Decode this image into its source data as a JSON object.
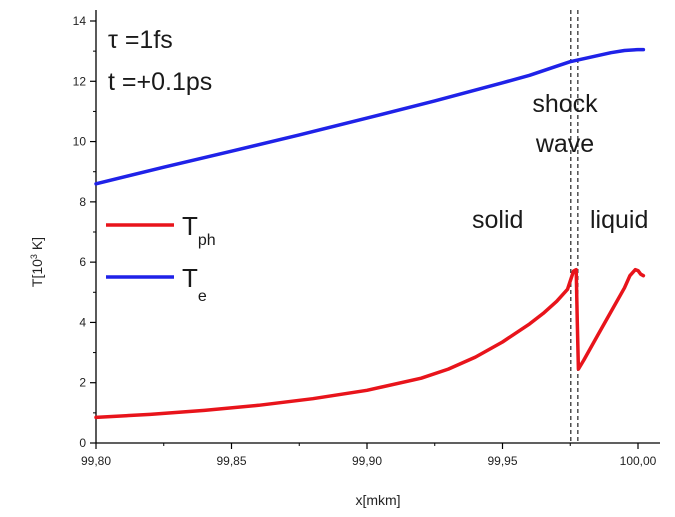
{
  "chart_data": {
    "type": "line",
    "xlabel": "x[mkm]",
    "ylabel_main": "T[10",
    "ylabel_sup": "3",
    "ylabel_tail": " K]",
    "xlim": [
      99.8,
      100.02
    ],
    "ylim": [
      0,
      14.5
    ],
    "x_ticks": [
      99.8,
      99.85,
      99.9,
      99.95,
      100.0
    ],
    "x_tick_labels": [
      "99,80",
      "99,85",
      "99,90",
      "99,95",
      "100,00"
    ],
    "y_ticks": [
      0,
      2,
      4,
      6,
      8,
      10,
      12,
      14
    ],
    "y_tick_labels": [
      "0",
      "2",
      "4",
      "6",
      "8",
      "10",
      "12",
      "14"
    ],
    "grid": false,
    "legend_placement": "middle-left",
    "series": [
      {
        "key": "Tph",
        "legend_main": "T",
        "legend_sub": "ph",
        "color": "#e8141b",
        "x": [
          99.8,
          99.82,
          99.84,
          99.86,
          99.88,
          99.9,
          99.92,
          99.93,
          99.94,
          99.95,
          99.96,
          99.965,
          99.97,
          99.974,
          99.9762,
          99.9772,
          99.9776,
          99.978,
          99.98,
          99.985,
          99.99,
          99.995,
          99.997,
          99.999,
          100.0,
          100.001,
          100.002
        ],
        "y": [
          0.85,
          0.95,
          1.08,
          1.25,
          1.47,
          1.75,
          2.15,
          2.45,
          2.85,
          3.35,
          3.95,
          4.3,
          4.7,
          5.1,
          5.7,
          5.75,
          4.0,
          2.45,
          2.75,
          3.55,
          4.35,
          5.15,
          5.55,
          5.75,
          5.72,
          5.6,
          5.55
        ]
      },
      {
        "key": "Te",
        "legend_main": "T",
        "legend_sub": "e",
        "color": "#1f22e8",
        "x": [
          99.8,
          99.825,
          99.85,
          99.875,
          99.9,
          99.925,
          99.95,
          99.96,
          99.97,
          99.975,
          99.98,
          99.985,
          99.99,
          99.995,
          100.0,
          100.002
        ],
        "y": [
          8.6,
          9.15,
          9.68,
          10.22,
          10.78,
          11.35,
          11.95,
          12.2,
          12.5,
          12.65,
          12.75,
          12.85,
          12.95,
          13.02,
          13.05,
          13.05
        ]
      }
    ],
    "shock_wave_lines_x": [
      99.9752,
      99.9778
    ],
    "annotations": {
      "tau": "τ =1fs",
      "time": "t =+0.1ps",
      "shock_line1": "shock",
      "shock_line2": "wave",
      "solid": "solid",
      "liquid": "liquid"
    }
  }
}
